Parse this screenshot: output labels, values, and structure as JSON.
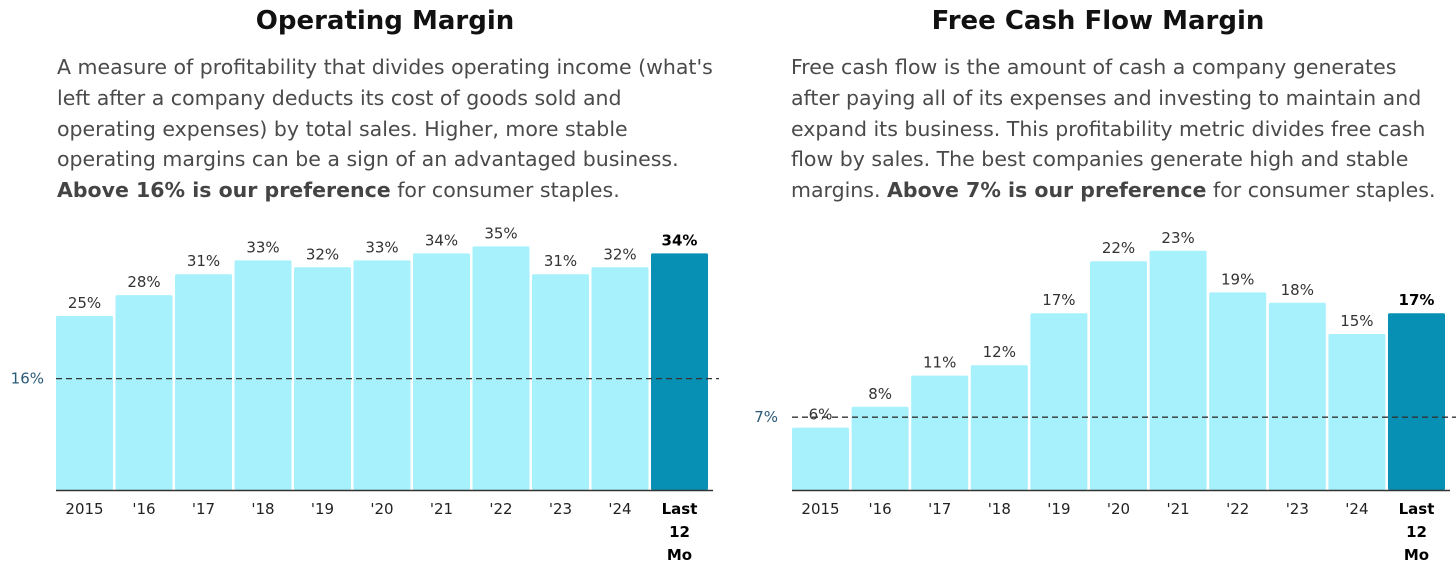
{
  "charts": [
    {
      "title": "Operating Margin",
      "desc_plain": "A measure of profitability that divides operating income (what's left after a company deducts its cost of goods sold and operating expenses) by total sales. Higher, more stable operating margins can be a sign of an advantaged business.",
      "desc_bold": "Above 16% is our preference",
      "desc_tail": " for consumer staples."
    },
    {
      "title": "Free Cash Flow Margin",
      "desc_plain": "Free cash flow is the amount of cash a company generates after paying all of its expenses and investing to maintain and expand its business. This profitability metric divides free cash flow by sales. The best companies generate high and stable margins.",
      "desc_bold": "Above 7% is our preference",
      "desc_tail": " for consumer staples."
    }
  ],
  "colors": {
    "bar": "#a6f1fc",
    "highlight": "#0790b3",
    "refline": "#333333",
    "axis": "#333333"
  },
  "chart_data": [
    {
      "type": "bar",
      "title": "Operating Margin",
      "categories": [
        "2015",
        "'16",
        "'17",
        "'18",
        "'19",
        "'20",
        "'21",
        "'22",
        "'23",
        "'24",
        "Last 12 Mo"
      ],
      "values": [
        25,
        28,
        31,
        33,
        32,
        33,
        34,
        35,
        31,
        32,
        34
      ],
      "value_labels": [
        "25%",
        "28%",
        "31%",
        "33%",
        "32%",
        "33%",
        "34%",
        "35%",
        "31%",
        "32%",
        "34%"
      ],
      "highlight_index": 10,
      "reference_line": {
        "value": 16,
        "label": "16%",
        "style": "dashed"
      },
      "ylim": [
        0,
        36
      ],
      "xlabel": "",
      "ylabel": "",
      "grid": false,
      "legend": "none"
    },
    {
      "type": "bar",
      "title": "Free Cash Flow Margin",
      "categories": [
        "2015",
        "'16",
        "'17",
        "'18",
        "'19",
        "'20",
        "'21",
        "'22",
        "'23",
        "'24",
        "Last 12 Mo"
      ],
      "values": [
        6,
        8,
        11,
        12,
        17,
        22,
        23,
        19,
        18,
        15,
        17
      ],
      "value_labels": [
        "6%",
        "8%",
        "11%",
        "12%",
        "17%",
        "22%",
        "23%",
        "19%",
        "18%",
        "15%",
        "17%"
      ],
      "highlight_index": 10,
      "reference_line": {
        "value": 7,
        "label": "7%",
        "style": "dashed"
      },
      "ylim": [
        0,
        24
      ],
      "xlabel": "",
      "ylabel": "",
      "grid": false,
      "legend": "none"
    }
  ]
}
